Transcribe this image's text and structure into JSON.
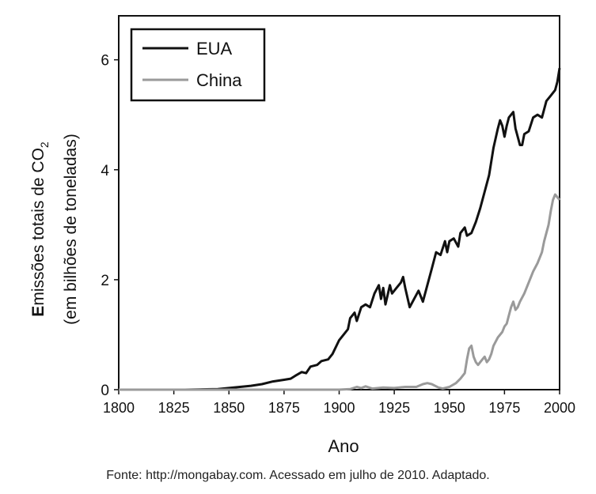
{
  "chart_data": {
    "type": "line",
    "title": "",
    "xlabel": "Ano",
    "ylabel_line1_pre": "E",
    "ylabel_line1_main": "missões totais de CO",
    "ylabel_line1_sub": "2",
    "ylabel_line2": "(em bilhões de toneladas)",
    "xlim": [
      1800,
      2000
    ],
    "ylim": [
      0,
      6.8
    ],
    "xticks": [
      1800,
      1825,
      1850,
      1875,
      1900,
      1925,
      1950,
      1975,
      2000
    ],
    "yticks": [
      0,
      2,
      4,
      6
    ],
    "legend_position": "top-left",
    "series": [
      {
        "name": "EUA",
        "color": "#111111",
        "points": [
          [
            1800,
            0
          ],
          [
            1830,
            0
          ],
          [
            1845,
            0.01
          ],
          [
            1850,
            0.03
          ],
          [
            1855,
            0.05
          ],
          [
            1860,
            0.07
          ],
          [
            1865,
            0.1
          ],
          [
            1870,
            0.15
          ],
          [
            1875,
            0.18
          ],
          [
            1878,
            0.2
          ],
          [
            1880,
            0.25
          ],
          [
            1883,
            0.32
          ],
          [
            1885,
            0.3
          ],
          [
            1887,
            0.42
          ],
          [
            1890,
            0.45
          ],
          [
            1892,
            0.52
          ],
          [
            1895,
            0.55
          ],
          [
            1897,
            0.65
          ],
          [
            1900,
            0.9
          ],
          [
            1902,
            1.0
          ],
          [
            1904,
            1.1
          ],
          [
            1905,
            1.3
          ],
          [
            1907,
            1.4
          ],
          [
            1908,
            1.25
          ],
          [
            1910,
            1.5
          ],
          [
            1912,
            1.55
          ],
          [
            1914,
            1.5
          ],
          [
            1916,
            1.75
          ],
          [
            1918,
            1.9
          ],
          [
            1919,
            1.65
          ],
          [
            1920,
            1.85
          ],
          [
            1921,
            1.55
          ],
          [
            1923,
            1.9
          ],
          [
            1924,
            1.75
          ],
          [
            1926,
            1.85
          ],
          [
            1928,
            1.95
          ],
          [
            1929,
            2.05
          ],
          [
            1930,
            1.85
          ],
          [
            1932,
            1.5
          ],
          [
            1934,
            1.65
          ],
          [
            1936,
            1.8
          ],
          [
            1938,
            1.6
          ],
          [
            1940,
            1.9
          ],
          [
            1942,
            2.2
          ],
          [
            1944,
            2.5
          ],
          [
            1946,
            2.45
          ],
          [
            1948,
            2.7
          ],
          [
            1949,
            2.5
          ],
          [
            1950,
            2.7
          ],
          [
            1952,
            2.75
          ],
          [
            1954,
            2.6
          ],
          [
            1955,
            2.85
          ],
          [
            1957,
            2.95
          ],
          [
            1958,
            2.8
          ],
          [
            1960,
            2.85
          ],
          [
            1962,
            3.05
          ],
          [
            1964,
            3.3
          ],
          [
            1966,
            3.6
          ],
          [
            1968,
            3.9
          ],
          [
            1970,
            4.4
          ],
          [
            1972,
            4.75
          ],
          [
            1973,
            4.9
          ],
          [
            1974,
            4.8
          ],
          [
            1975,
            4.6
          ],
          [
            1976,
            4.8
          ],
          [
            1977,
            4.95
          ],
          [
            1978,
            5.0
          ],
          [
            1979,
            5.05
          ],
          [
            1980,
            4.75
          ],
          [
            1981,
            4.6
          ],
          [
            1982,
            4.45
          ],
          [
            1983,
            4.45
          ],
          [
            1984,
            4.65
          ],
          [
            1986,
            4.7
          ],
          [
            1988,
            4.95
          ],
          [
            1990,
            5.0
          ],
          [
            1992,
            4.95
          ],
          [
            1994,
            5.25
          ],
          [
            1996,
            5.35
          ],
          [
            1998,
            5.45
          ],
          [
            1999,
            5.6
          ],
          [
            2000,
            5.85
          ]
        ]
      },
      {
        "name": "China",
        "color": "#9a9a9a",
        "points": [
          [
            1800,
            0
          ],
          [
            1850,
            0
          ],
          [
            1900,
            0
          ],
          [
            1905,
            0.01
          ],
          [
            1908,
            0.05
          ],
          [
            1910,
            0.03
          ],
          [
            1912,
            0.06
          ],
          [
            1915,
            0.02
          ],
          [
            1920,
            0.04
          ],
          [
            1925,
            0.03
          ],
          [
            1930,
            0.05
          ],
          [
            1935,
            0.05
          ],
          [
            1938,
            0.1
          ],
          [
            1940,
            0.12
          ],
          [
            1942,
            0.1
          ],
          [
            1945,
            0.04
          ],
          [
            1947,
            0.02
          ],
          [
            1950,
            0.05
          ],
          [
            1953,
            0.12
          ],
          [
            1955,
            0.2
          ],
          [
            1957,
            0.3
          ],
          [
            1958,
            0.55
          ],
          [
            1959,
            0.75
          ],
          [
            1960,
            0.8
          ],
          [
            1961,
            0.6
          ],
          [
            1962,
            0.5
          ],
          [
            1963,
            0.45
          ],
          [
            1964,
            0.5
          ],
          [
            1965,
            0.55
          ],
          [
            1966,
            0.6
          ],
          [
            1967,
            0.5
          ],
          [
            1968,
            0.55
          ],
          [
            1969,
            0.65
          ],
          [
            1970,
            0.8
          ],
          [
            1972,
            0.95
          ],
          [
            1974,
            1.05
          ],
          [
            1975,
            1.15
          ],
          [
            1976,
            1.2
          ],
          [
            1977,
            1.35
          ],
          [
            1978,
            1.5
          ],
          [
            1979,
            1.6
          ],
          [
            1980,
            1.45
          ],
          [
            1981,
            1.5
          ],
          [
            1982,
            1.6
          ],
          [
            1984,
            1.75
          ],
          [
            1986,
            1.95
          ],
          [
            1988,
            2.15
          ],
          [
            1990,
            2.3
          ],
          [
            1991,
            2.4
          ],
          [
            1992,
            2.5
          ],
          [
            1993,
            2.7
          ],
          [
            1995,
            3.0
          ],
          [
            1996,
            3.25
          ],
          [
            1997,
            3.45
          ],
          [
            1998,
            3.55
          ],
          [
            1999,
            3.5
          ],
          [
            2000,
            3.45
          ]
        ]
      }
    ]
  },
  "source_note": "Fonte: http://mongabay.com. Acessado em julho de 2010. Adaptado."
}
